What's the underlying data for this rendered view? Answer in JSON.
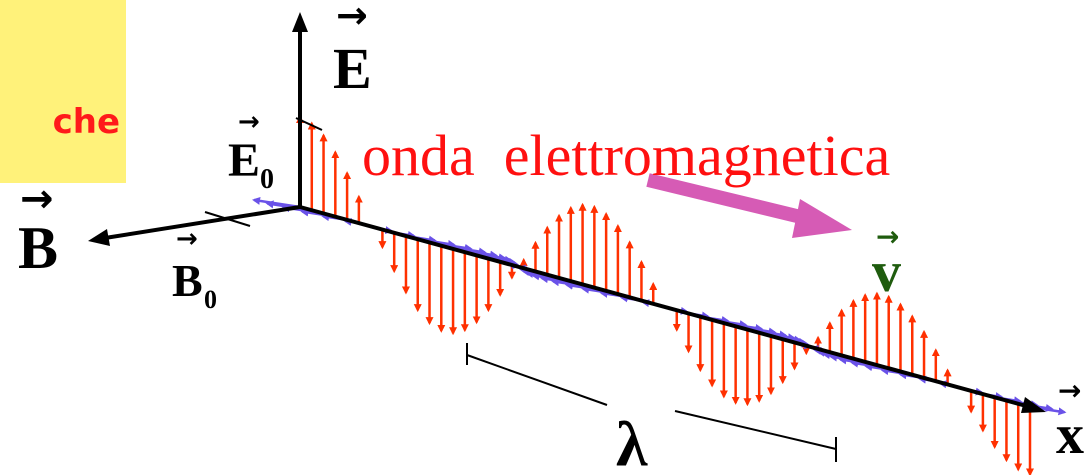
{
  "title": "onda  elettromagnetica",
  "corner_label": "che",
  "labels": {
    "E": "E",
    "E0_base": "E",
    "E0_sub": "0",
    "B": "B",
    "B0_base": "B",
    "B0_sub": "0",
    "v": "v",
    "x": "x",
    "lambda": "λ"
  },
  "colors": {
    "E_field": "#ff3000",
    "B_field": "#6a52e8",
    "title": "#ff1010",
    "velocity_arrow": "#d65bb5",
    "velocity_label": "#1f5c0e",
    "axes": "#000000",
    "highlight_box": "#fff27a"
  },
  "wave": {
    "cycles_shown": 2.5,
    "E_field": "vertical arrows, sinusoidal",
    "B_field": "horizontal arrows, sinusoidal"
  }
}
